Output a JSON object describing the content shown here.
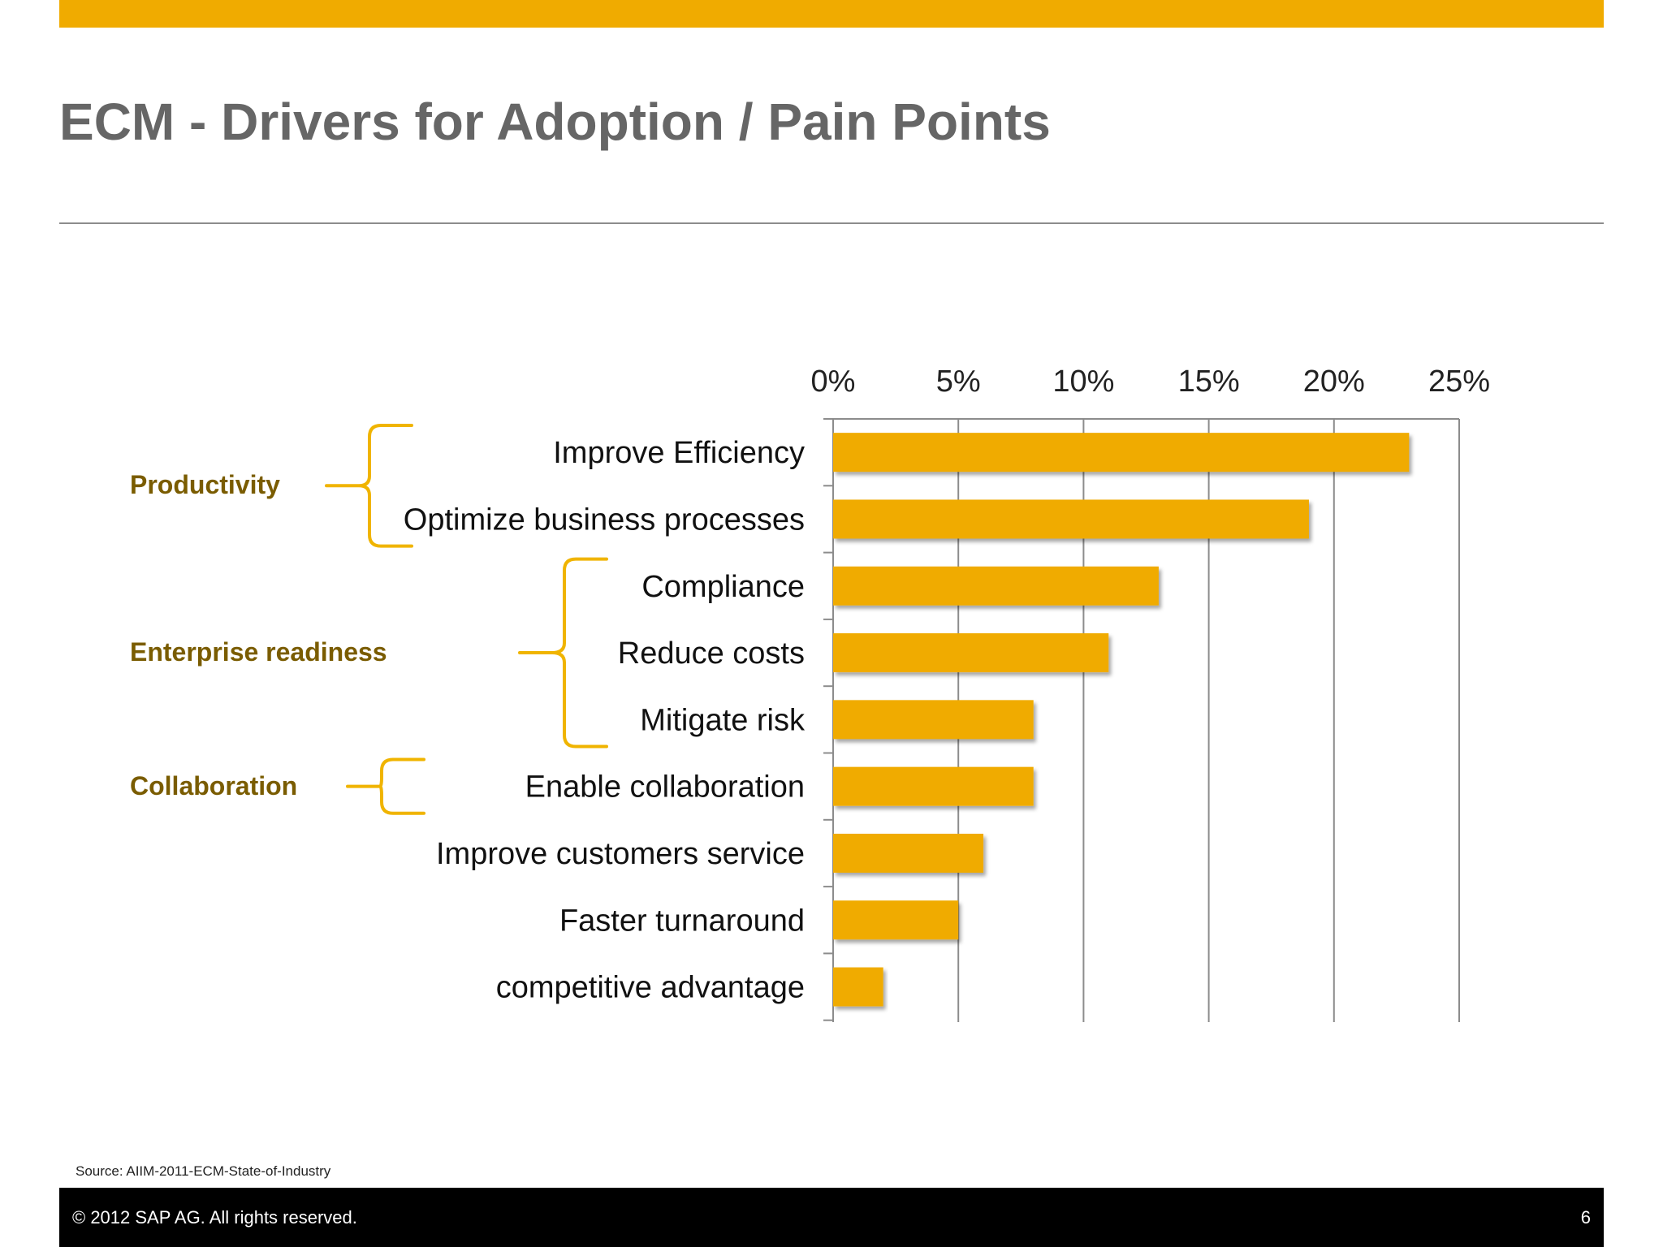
{
  "slide": {
    "title": "ECM - Drivers for Adoption / Pain Points",
    "source": "Source: AIIM-2011-ECM-State-of-Industry",
    "footer": {
      "copyright": "©  2012 SAP AG. All rights reserved.",
      "page_number": "6"
    }
  },
  "groups": [
    {
      "label": "Productivity",
      "from": 0,
      "to": 1
    },
    {
      "label": "Enterprise readiness",
      "from": 2,
      "to": 4
    },
    {
      "label": "Collaboration",
      "from": 5,
      "to": 5
    }
  ],
  "colors": {
    "accent": "#f0ab00",
    "group_label": "#7a5c00",
    "bracket": "#f0b400",
    "grid": "#8c8c8c"
  },
  "chart_data": {
    "type": "bar",
    "orientation": "horizontal",
    "categories": [
      "Improve Efficiency",
      "Optimize business processes",
      "Compliance",
      "Reduce costs",
      "Mitigate risk",
      "Enable collaboration",
      "Improve customers service",
      "Faster turnaround",
      "competitive advantage"
    ],
    "values": [
      23,
      19,
      13,
      11,
      8,
      8,
      6,
      5,
      2
    ],
    "xlim": [
      0,
      25
    ],
    "ticks": [
      0,
      5,
      10,
      15,
      20,
      25
    ],
    "tick_labels": [
      "0%",
      "5%",
      "10%",
      "15%",
      "20%",
      "25%"
    ],
    "axis_position": "top",
    "grid": true
  }
}
